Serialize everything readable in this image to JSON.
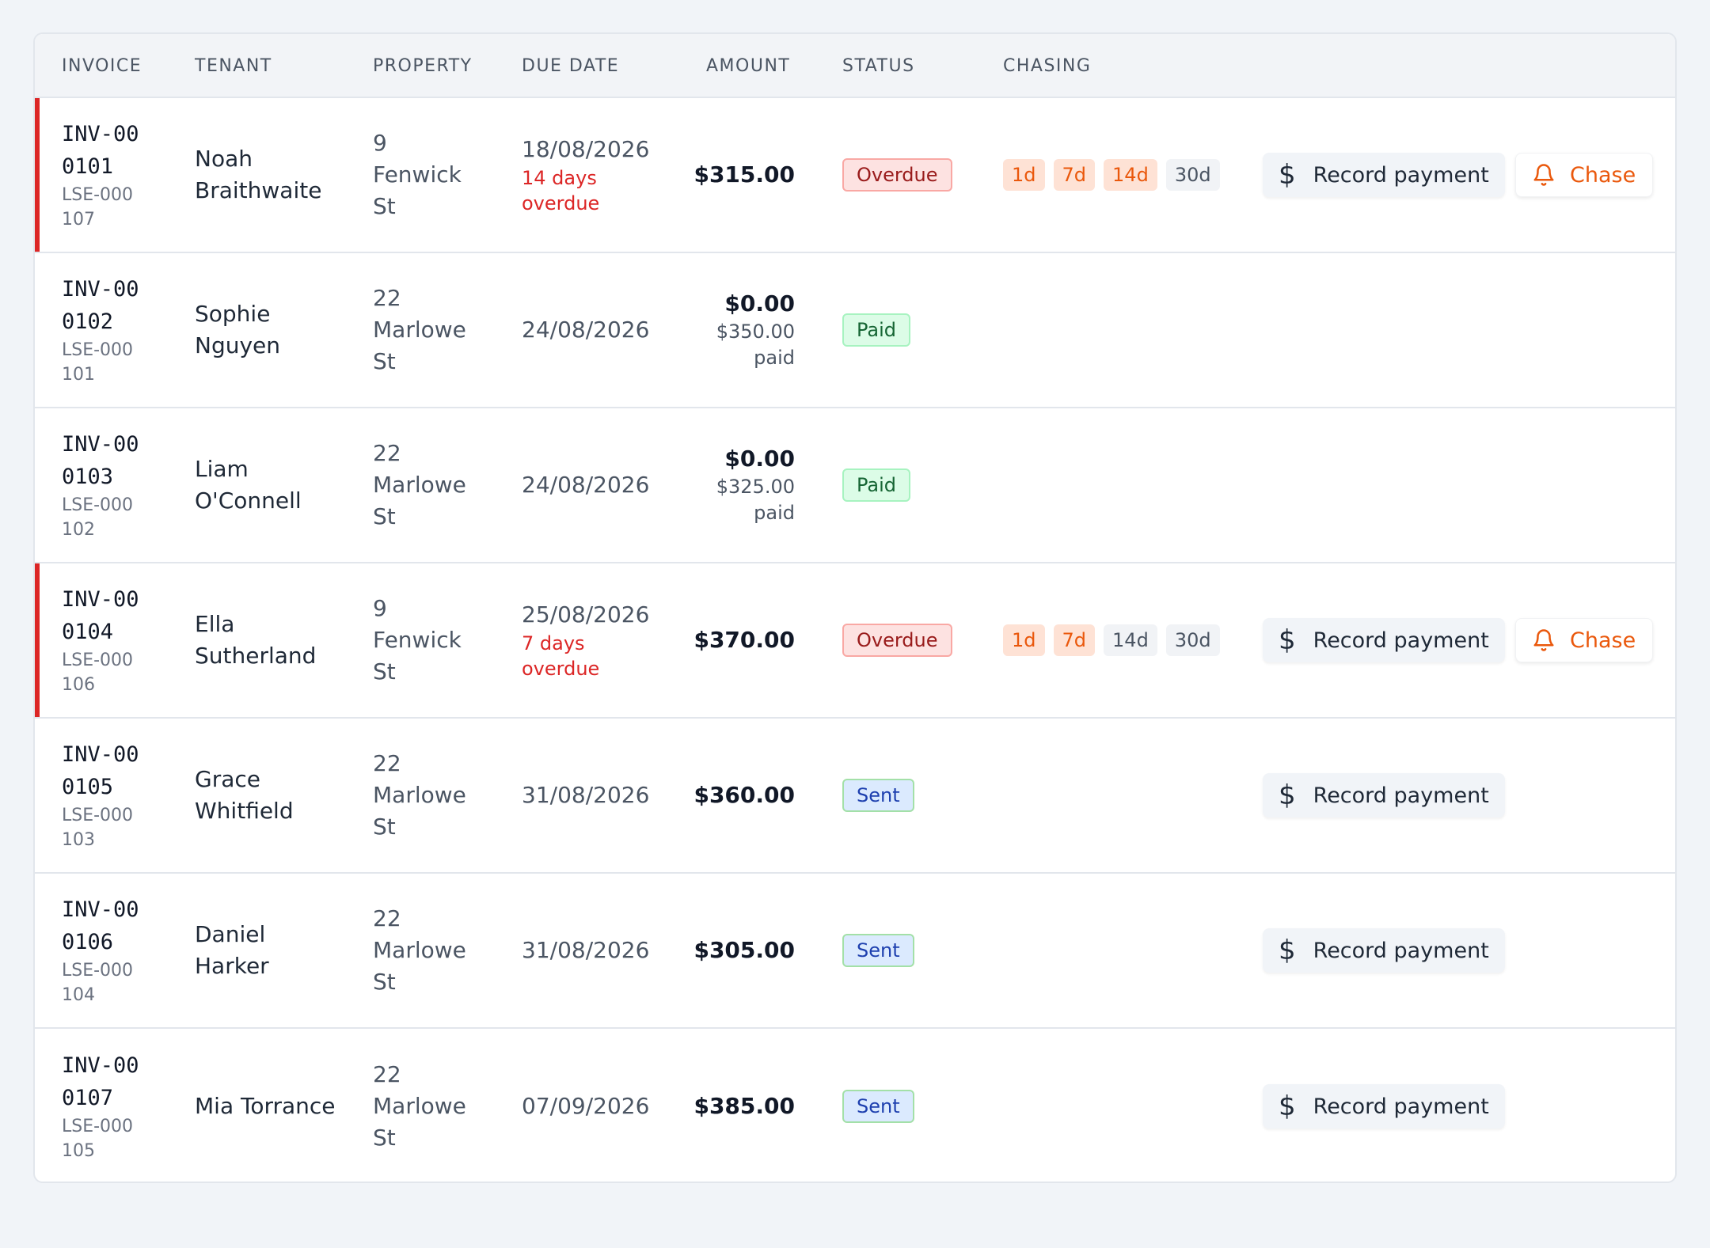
{
  "columns": {
    "invoice": "INVOICE",
    "tenant": "TENANT",
    "property": "PROPERTY",
    "due_date": "DUE DATE",
    "amount": "AMOUNT",
    "status": "STATUS",
    "chasing": "CHASING"
  },
  "actions": {
    "record_payment": "Record payment",
    "chase": "Chase",
    "dollar_symbol": "$"
  },
  "icons": {
    "record": "dollar-icon",
    "chase": "bell-icon"
  },
  "colors": {
    "overdue_accent": "#dc2626",
    "chase_orange": "#ea580c"
  },
  "rows": [
    {
      "invoice": "INV-000101",
      "lease": "LSE-000107",
      "tenant": "Noah Braithwaite",
      "property": "9 Fenwick St",
      "due": "18/08/2026",
      "overdue_note": "14 days overdue",
      "amount": "$315.00",
      "paid_note": "",
      "status": "Overdue",
      "status_kind": "overdue",
      "chasing": [
        {
          "label": "1d",
          "done": true
        },
        {
          "label": "7d",
          "done": true
        },
        {
          "label": "14d",
          "done": true
        },
        {
          "label": "30d",
          "done": false
        }
      ],
      "can_record": true,
      "can_chase": true
    },
    {
      "invoice": "INV-000102",
      "lease": "LSE-000101",
      "tenant": "Sophie Nguyen",
      "property": "22 Marlowe St",
      "due": "24/08/2026",
      "overdue_note": "",
      "amount": "$0.00",
      "paid_note": "$350.00 paid",
      "status": "Paid",
      "status_kind": "paid",
      "chasing": [],
      "can_record": false,
      "can_chase": false
    },
    {
      "invoice": "INV-000103",
      "lease": "LSE-000102",
      "tenant": "Liam O'Connell",
      "property": "22 Marlowe St",
      "due": "24/08/2026",
      "overdue_note": "",
      "amount": "$0.00",
      "paid_note": "$325.00 paid",
      "status": "Paid",
      "status_kind": "paid",
      "chasing": [],
      "can_record": false,
      "can_chase": false
    },
    {
      "invoice": "INV-000104",
      "lease": "LSE-000106",
      "tenant": "Ella Sutherland",
      "property": "9 Fenwick St",
      "due": "25/08/2026",
      "overdue_note": "7 days overdue",
      "amount": "$370.00",
      "paid_note": "",
      "status": "Overdue",
      "status_kind": "overdue",
      "chasing": [
        {
          "label": "1d",
          "done": true
        },
        {
          "label": "7d",
          "done": true
        },
        {
          "label": "14d",
          "done": false
        },
        {
          "label": "30d",
          "done": false
        }
      ],
      "can_record": true,
      "can_chase": true
    },
    {
      "invoice": "INV-000105",
      "lease": "LSE-000103",
      "tenant": "Grace Whitfield",
      "property": "22 Marlowe St",
      "due": "31/08/2026",
      "overdue_note": "",
      "amount": "$360.00",
      "paid_note": "",
      "status": "Sent",
      "status_kind": "sent",
      "chasing": [],
      "can_record": true,
      "can_chase": false
    },
    {
      "invoice": "INV-000106",
      "lease": "LSE-000104",
      "tenant": "Daniel Harker",
      "property": "22 Marlowe St",
      "due": "31/08/2026",
      "overdue_note": "",
      "amount": "$305.00",
      "paid_note": "",
      "status": "Sent",
      "status_kind": "sent",
      "chasing": [],
      "can_record": true,
      "can_chase": false
    },
    {
      "invoice": "INV-000107",
      "lease": "LSE-000105",
      "tenant": "Mia Torrance",
      "property": "22 Marlowe St",
      "due": "07/09/2026",
      "overdue_note": "",
      "amount": "$385.00",
      "paid_note": "",
      "status": "Sent",
      "status_kind": "sent",
      "chasing": [],
      "can_record": true,
      "can_chase": false
    }
  ]
}
